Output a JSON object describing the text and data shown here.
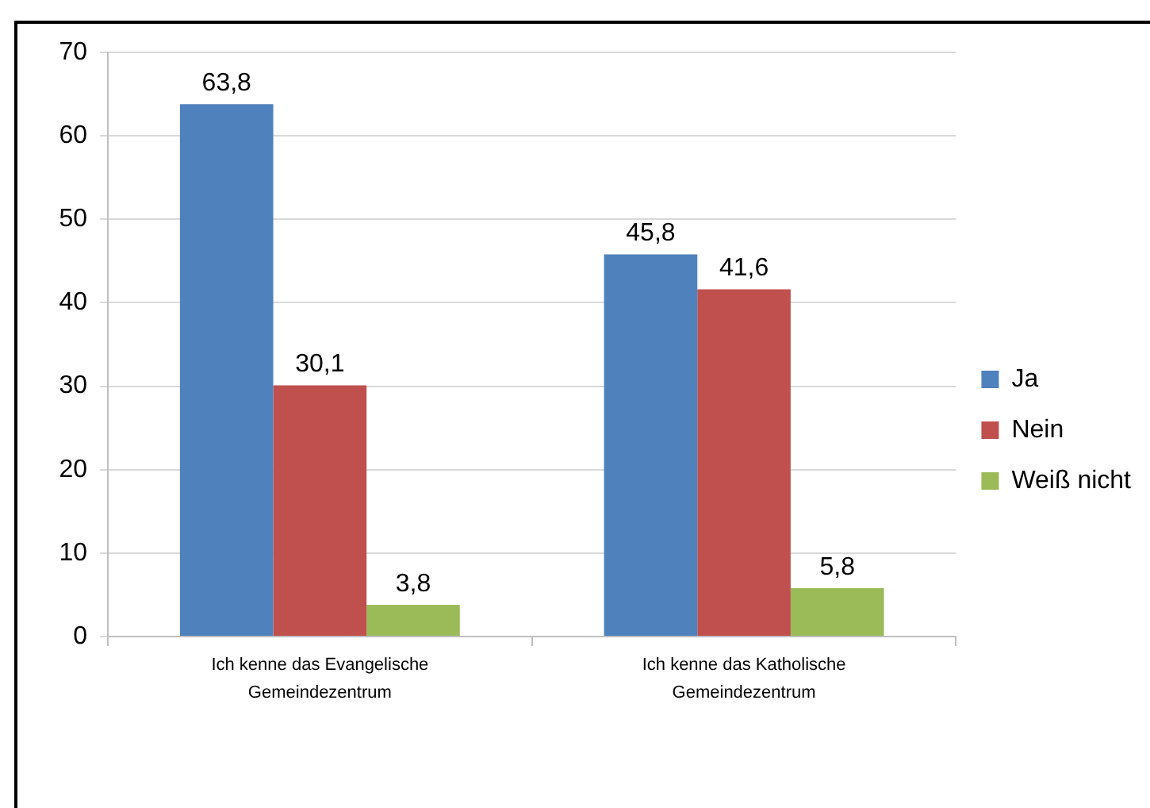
{
  "chart_data": {
    "type": "bar",
    "categories": [
      "Ich kenne das Evangelische Gemeindezentrum",
      "Ich kenne das Katholische Gemeindezentrum"
    ],
    "series": [
      {
        "name": "Ja",
        "color": "#4f81bd",
        "values": [
          63.8,
          45.8
        ],
        "value_labels": [
          "63,8",
          "45,8"
        ]
      },
      {
        "name": "Nein",
        "color": "#c0504d",
        "values": [
          30.1,
          41.6
        ],
        "value_labels": [
          "30,1",
          "41,6"
        ]
      },
      {
        "name": "Weiß nicht",
        "color": "#9bbb59",
        "values": [
          3.8,
          5.8
        ],
        "value_labels": [
          "3,8",
          "5,8"
        ]
      }
    ],
    "ylim": [
      0,
      70
    ],
    "yticks": [
      0,
      10,
      20,
      30,
      40,
      50,
      60,
      70
    ],
    "grid": "y",
    "legend": "right"
  }
}
